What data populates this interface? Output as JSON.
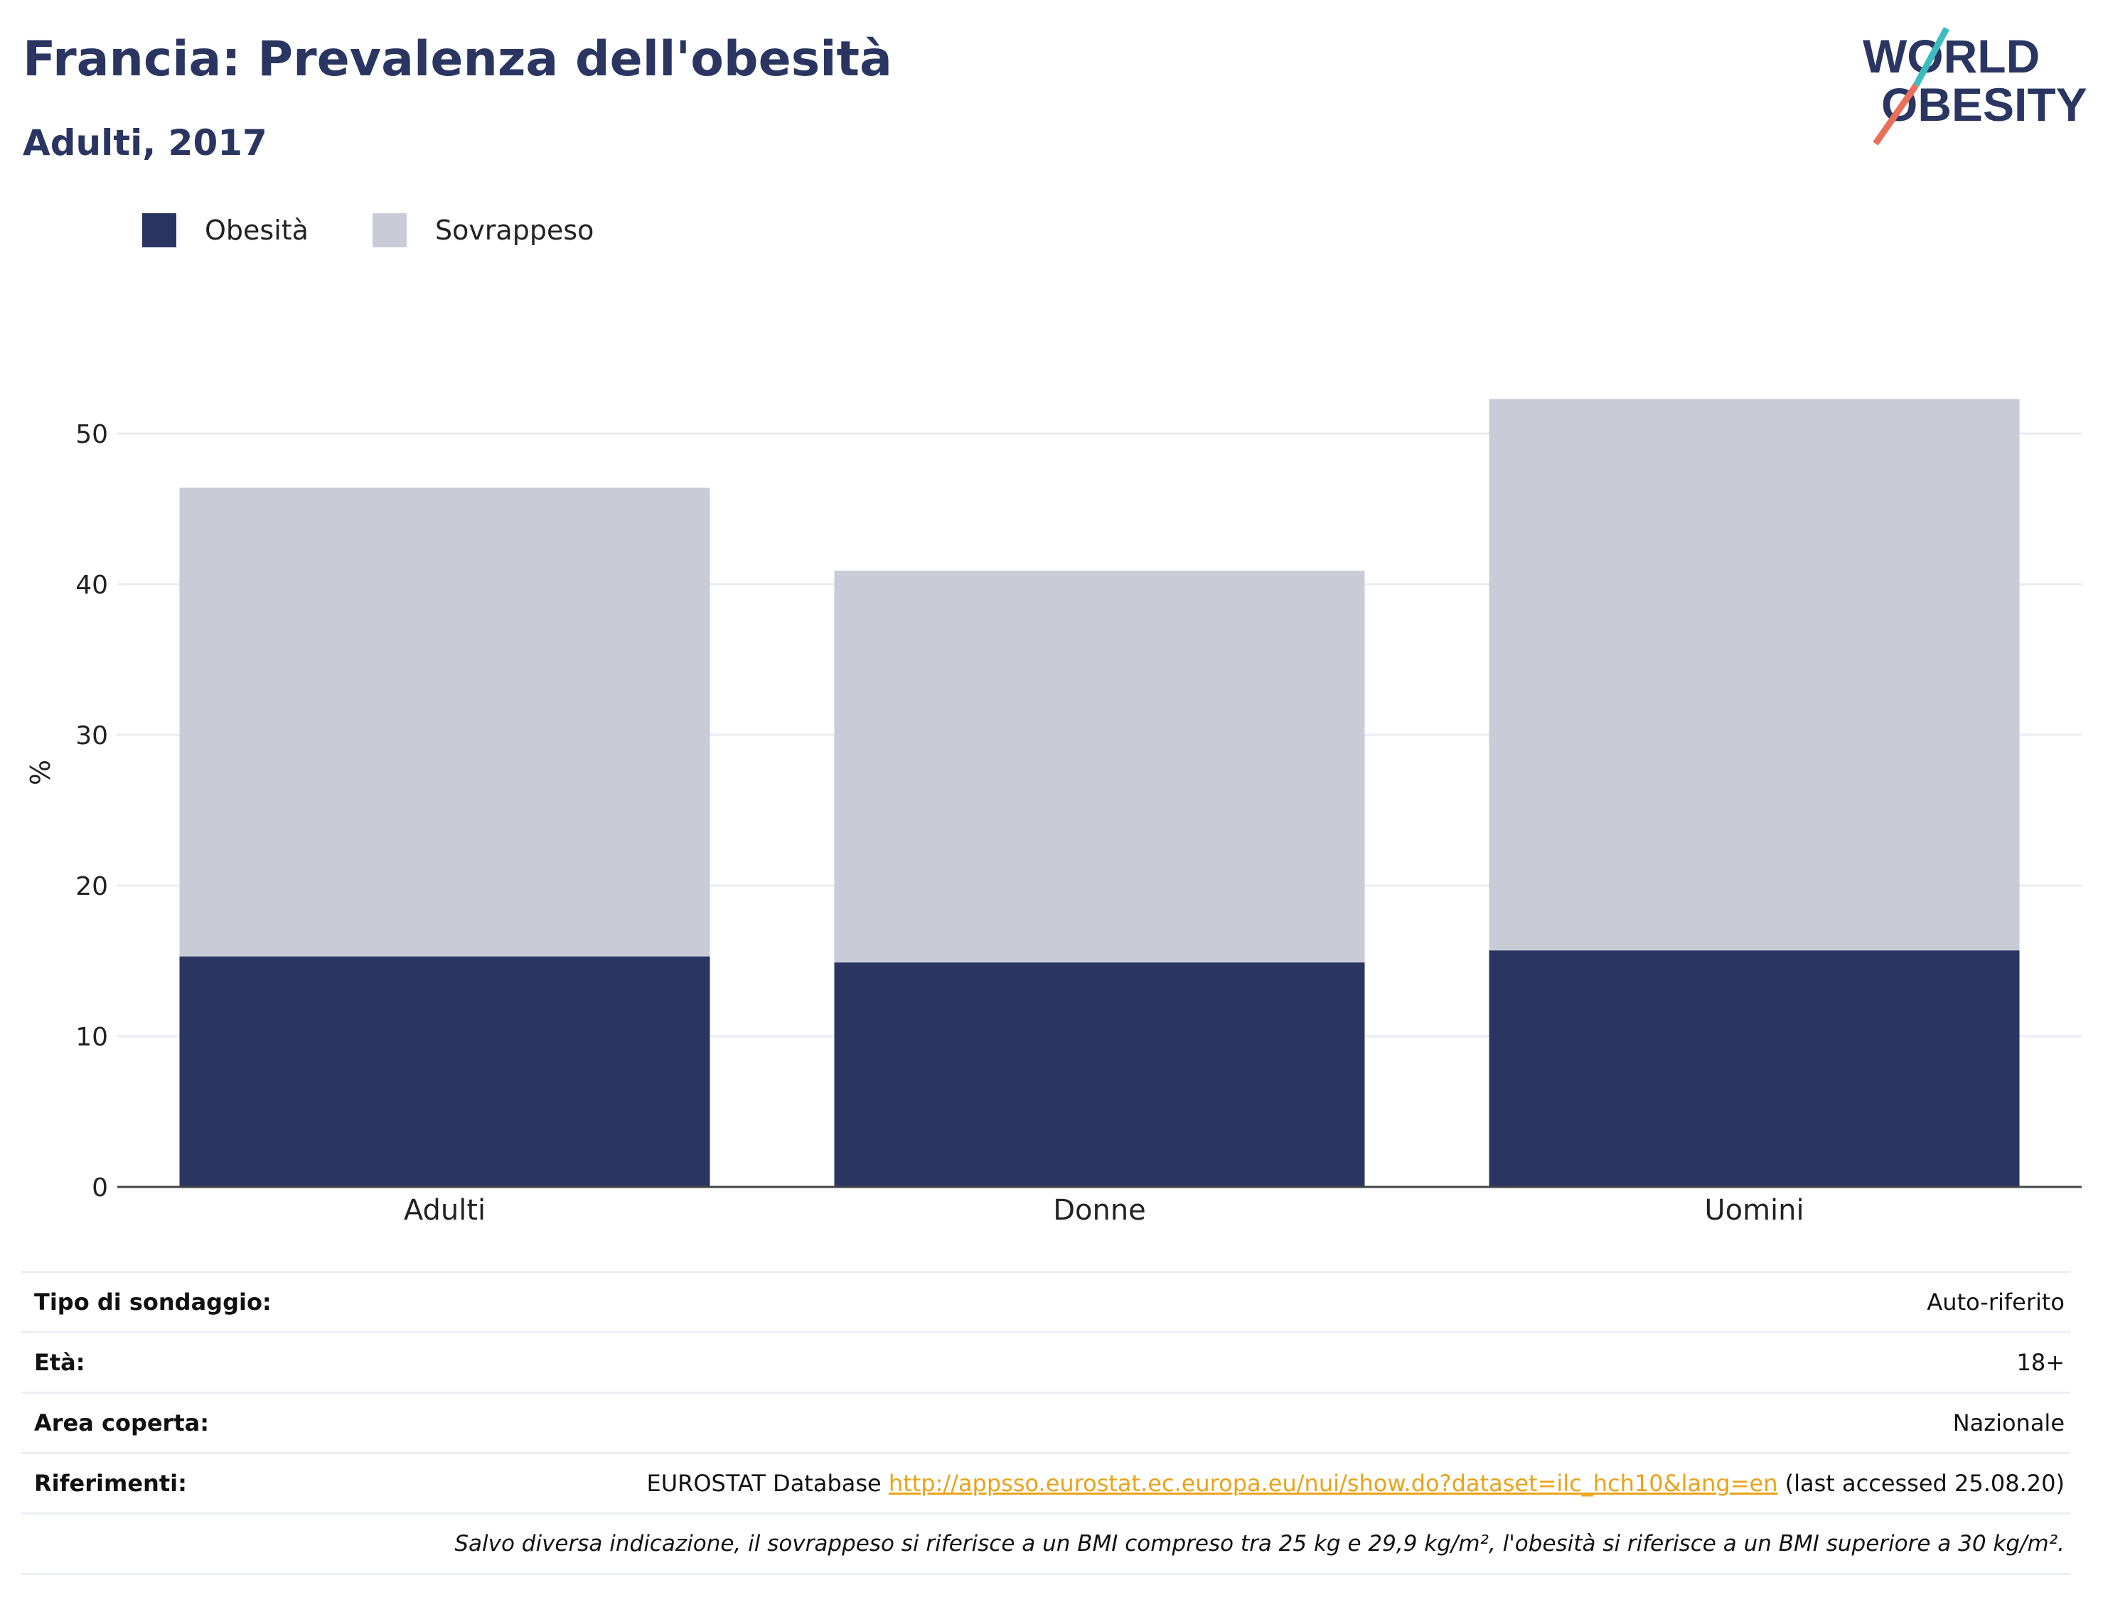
{
  "header": {
    "title": "Francia: Prevalenza dell'obesità",
    "subtitle": "Adulti, 2017"
  },
  "logo": {
    "line1": "WORLD",
    "line2": "OBESITY",
    "colors": {
      "text": "#2a3661",
      "slash_top": "#3bbcc0",
      "slash_bottom": "#e8705a"
    }
  },
  "legend": [
    {
      "label": "Obesità",
      "color": "#2a3661"
    },
    {
      "label": "Sovrappeso",
      "color": "#c9cbd7"
    }
  ],
  "chart_data": {
    "type": "bar",
    "stacked": true,
    "categories": [
      "Adulti",
      "Donne",
      "Uomini"
    ],
    "series": [
      {
        "name": "Obesità",
        "values": [
          15.3,
          14.9,
          15.7
        ],
        "color": "#2a3661"
      },
      {
        "name": "Sovrappeso",
        "values": [
          31.1,
          26.0,
          36.6
        ],
        "color": "#c9cbd7"
      }
    ],
    "ylabel": "%",
    "ylim": [
      0,
      55
    ],
    "yticks": [
      0,
      10,
      20,
      30,
      40,
      50
    ],
    "grid": true,
    "legend_position": "top-left"
  },
  "info": {
    "survey_type": {
      "label": "Tipo di sondaggio:",
      "value": "Auto-riferito"
    },
    "age": {
      "label": "Età:",
      "value": "18+"
    },
    "coverage": {
      "label": "Area coperta:",
      "value": "Nazionale"
    },
    "references": {
      "label": "Riferimenti:",
      "source": "EUROSTAT Database",
      "url": "http://appsso.eurostat.ec.europa.eu/nui/show.do?dataset=ilc_hch10&lang=en",
      "accessed": "(last accessed 25.08.20)"
    },
    "note": "Salvo diversa indicazione, il sovrappeso si riferisce a un BMI compreso tra 25 kg e 29,9 kg/m², l'obesità si riferisce a un BMI superiore a 30 kg/m²."
  }
}
